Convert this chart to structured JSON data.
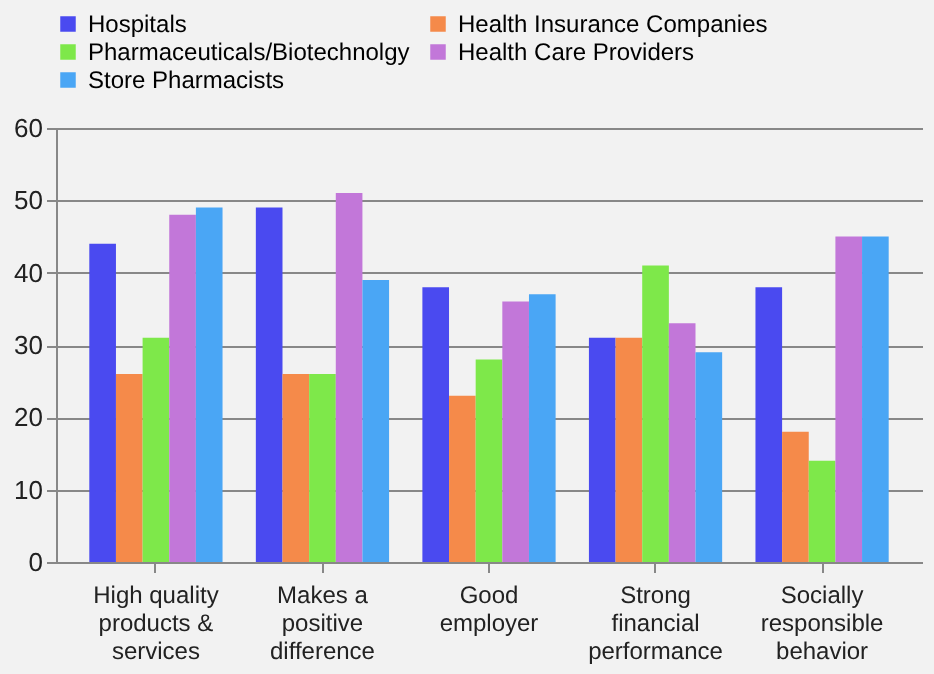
{
  "chart_data": {
    "type": "bar",
    "categories": [
      "High quality products & services",
      "Makes a positive difference",
      "Good employer",
      "Strong financial performance",
      "Socially responsible behavior"
    ],
    "series": [
      {
        "name": "Hospitals",
        "color": "#4a4af0",
        "values": [
          44,
          49,
          38,
          31,
          38
        ]
      },
      {
        "name": "Health Insurance Companies",
        "color": "#f58a4a",
        "values": [
          26,
          26,
          23,
          31,
          18
        ]
      },
      {
        "name": "Pharmaceuticals/Biotechnolgy",
        "color": "#7ee84a",
        "values": [
          31,
          26,
          28,
          41,
          14
        ]
      },
      {
        "name": "Health Care Providers",
        "color": "#c277d9",
        "values": [
          48,
          51,
          36,
          33,
          45
        ]
      },
      {
        "name": "Store Pharmacists",
        "color": "#4aa6f5",
        "values": [
          49,
          39,
          37,
          29,
          45
        ]
      }
    ],
    "ylim": [
      0,
      60
    ],
    "yticks": [
      0,
      10,
      20,
      30,
      40,
      50,
      60
    ],
    "grid": "y",
    "legend": "top"
  }
}
